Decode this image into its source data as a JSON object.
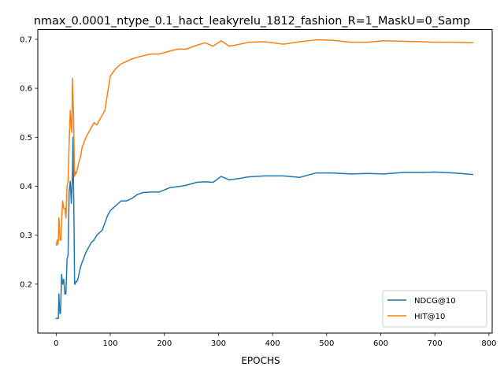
{
  "chart_data": {
    "type": "line",
    "title": "nmax_0.0001_ntype_0.1_hact_leakyrelu_1812_fashion_R=1_MaskU=0_Samp",
    "xlabel": "EPOCHS",
    "ylabel": "",
    "xlim": [
      -34,
      806
    ],
    "ylim": [
      0.1,
      0.72
    ],
    "xticks": [
      0,
      100,
      200,
      300,
      400,
      500,
      600,
      700,
      800
    ],
    "yticks": [
      0.2,
      0.3,
      0.4,
      0.5,
      0.6,
      0.7
    ],
    "grid": false,
    "legend_position": "lower-right",
    "series": [
      {
        "name": "NDCG@10",
        "color": "#1f77b4",
        "x": [
          0,
          2,
          4,
          5,
          6,
          7,
          8,
          10,
          12,
          14,
          16,
          18,
          20,
          22,
          24,
          26,
          28,
          30,
          31,
          32,
          33,
          34,
          35,
          36,
          38,
          40,
          42,
          45,
          48,
          50,
          55,
          60,
          65,
          70,
          75,
          80,
          85,
          90,
          95,
          100,
          105,
          110,
          120,
          130,
          140,
          150,
          160,
          175,
          190,
          210,
          230,
          240,
          260,
          275,
          290,
          305,
          320,
          340,
          355,
          385,
          420,
          450,
          480,
          510,
          545,
          575,
          605,
          640,
          675,
          700,
          735,
          770
        ],
        "y": [
          0.13,
          0.13,
          0.13,
          0.18,
          0.15,
          0.14,
          0.14,
          0.22,
          0.2,
          0.21,
          0.18,
          0.18,
          0.25,
          0.26,
          0.39,
          0.41,
          0.365,
          0.42,
          0.5,
          0.405,
          0.32,
          0.2,
          0.2,
          0.205,
          0.205,
          0.21,
          0.22,
          0.235,
          0.245,
          0.25,
          0.265,
          0.275,
          0.285,
          0.29,
          0.3,
          0.305,
          0.31,
          0.325,
          0.34,
          0.35,
          0.355,
          0.36,
          0.37,
          0.37,
          0.375,
          0.383,
          0.387,
          0.388,
          0.388,
          0.397,
          0.4,
          0.402,
          0.408,
          0.409,
          0.408,
          0.42,
          0.413,
          0.416,
          0.419,
          0.421,
          0.421,
          0.418,
          0.427,
          0.427,
          0.425,
          0.426,
          0.425,
          0.428,
          0.428,
          0.429,
          0.427,
          0.424
        ]
      },
      {
        "name": "HIT@10",
        "color": "#ff7f0e",
        "x": [
          0,
          2,
          3,
          4,
          5,
          6,
          7,
          8,
          9,
          10,
          11,
          12,
          14,
          16,
          18,
          20,
          22,
          24,
          26,
          28,
          29,
          30,
          31,
          32,
          33,
          34,
          35,
          36,
          38,
          40,
          42,
          45,
          48,
          50,
          55,
          60,
          65,
          70,
          75,
          80,
          85,
          90,
          95,
          100,
          110,
          120,
          130,
          140,
          155,
          175,
          190,
          210,
          225,
          240,
          255,
          275,
          290,
          305,
          320,
          340,
          355,
          385,
          420,
          450,
          480,
          510,
          545,
          575,
          605,
          640,
          675,
          700,
          735,
          770
        ],
        "y": [
          0.28,
          0.29,
          0.28,
          0.29,
          0.335,
          0.32,
          0.29,
          0.295,
          0.29,
          0.33,
          0.35,
          0.37,
          0.355,
          0.355,
          0.335,
          0.4,
          0.41,
          0.49,
          0.555,
          0.52,
          0.51,
          0.62,
          0.58,
          0.55,
          0.48,
          0.42,
          0.43,
          0.425,
          0.43,
          0.44,
          0.45,
          0.46,
          0.48,
          0.485,
          0.5,
          0.51,
          0.52,
          0.53,
          0.525,
          0.535,
          0.545,
          0.555,
          0.59,
          0.625,
          0.64,
          0.65,
          0.655,
          0.66,
          0.665,
          0.67,
          0.67,
          0.676,
          0.68,
          0.68,
          0.686,
          0.693,
          0.686,
          0.697,
          0.686,
          0.69,
          0.694,
          0.695,
          0.69,
          0.695,
          0.699,
          0.698,
          0.694,
          0.694,
          0.697,
          0.696,
          0.695,
          0.694,
          0.694,
          0.693
        ]
      }
    ]
  }
}
